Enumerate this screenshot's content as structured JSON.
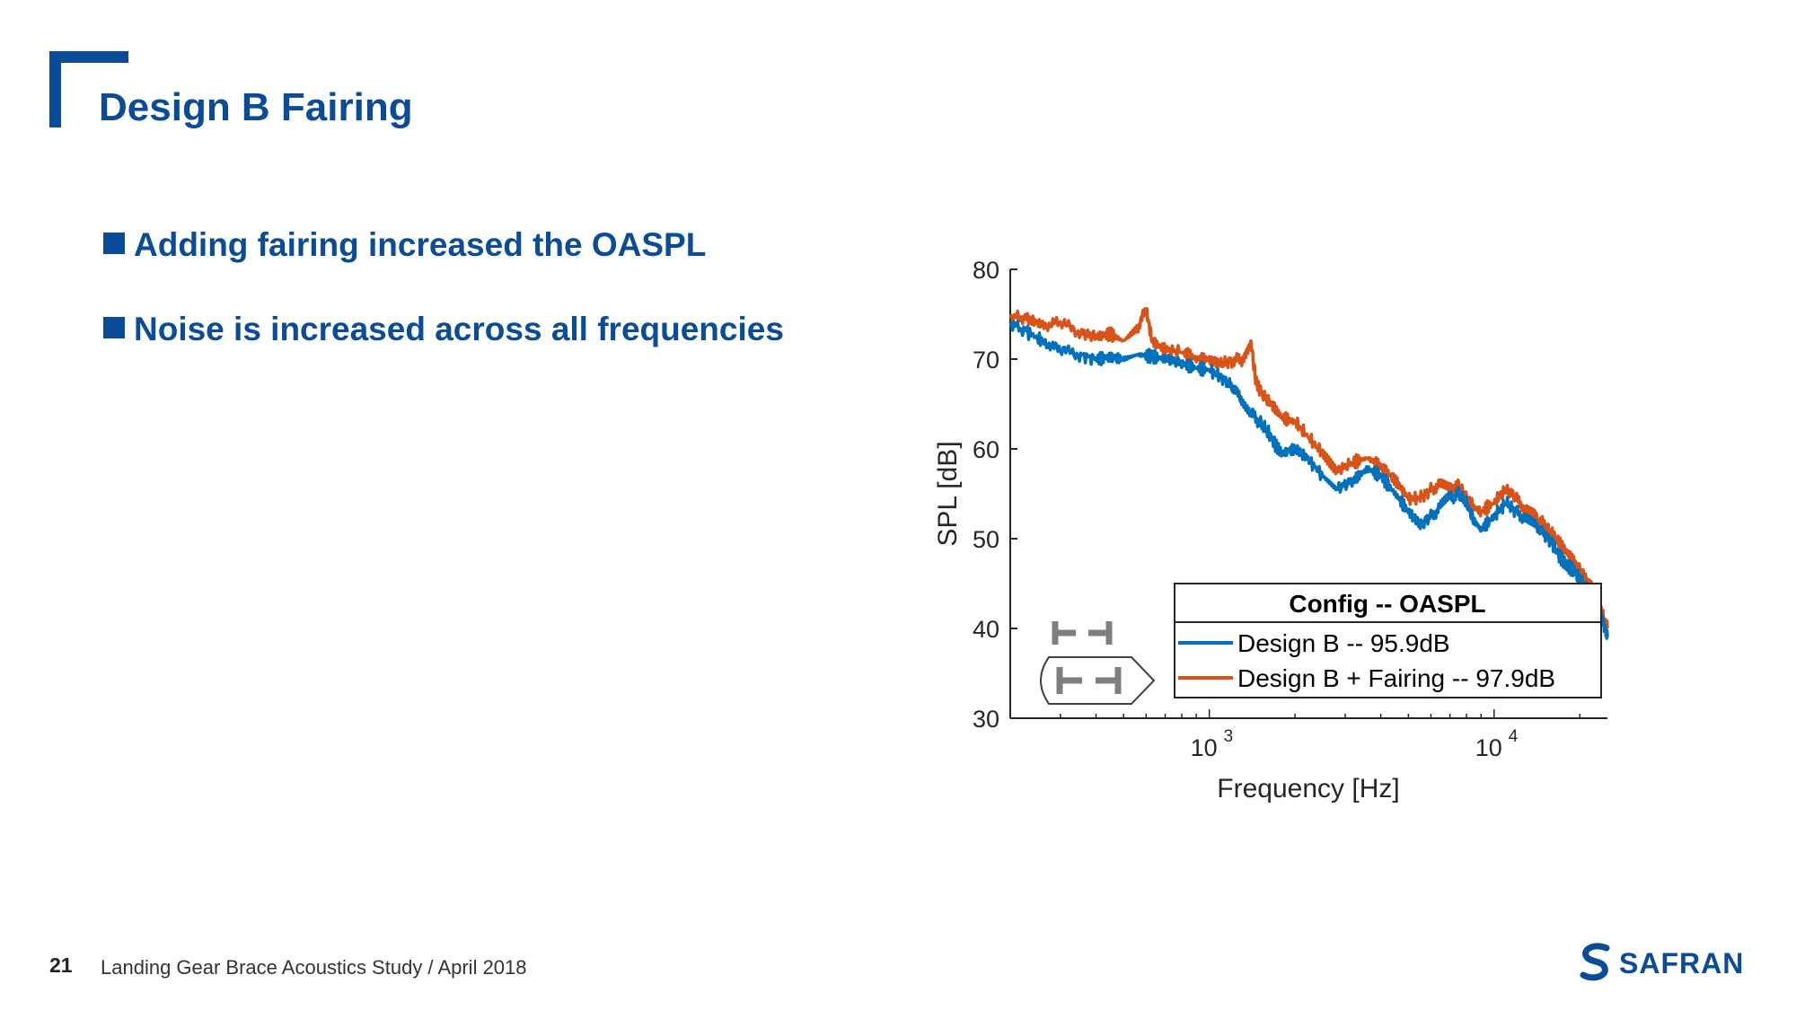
{
  "slide": {
    "title": "Design B Fairing",
    "bullets": [
      "Adding fairing increased the OASPL",
      "Noise is increased across all frequencies"
    ],
    "page_number": "21",
    "footer": "Landing Gear Brace Acoustics Study / April 2018",
    "brand": "SAFRAN",
    "brand_color": "#0a4b9a"
  },
  "chart_data": {
    "type": "line",
    "xscale": "log",
    "xlabel": "Frequency [Hz]",
    "ylabel": "SPL [dB]",
    "xlim": [
      200,
      25000
    ],
    "ylim": [
      30,
      80
    ],
    "yticks": [
      30,
      40,
      50,
      60,
      70,
      80
    ],
    "xticks": [
      {
        "value": 1000,
        "base": "10",
        "exp": "3"
      },
      {
        "value": 10000,
        "base": "10",
        "exp": "4"
      }
    ],
    "legend": {
      "title": "Config -- OASPL",
      "position": "bottom-right"
    },
    "series": [
      {
        "name": "Design B -- 95.9dB",
        "color": "#0072bd",
        "x": [
          200,
          230,
          260,
          300,
          350,
          400,
          450,
          500,
          560,
          630,
          700,
          800,
          900,
          1000,
          1100,
          1200,
          1300,
          1400,
          1500,
          1600,
          1700,
          1800,
          2000,
          2200,
          2500,
          2800,
          3200,
          3600,
          4000,
          4500,
          5000,
          5500,
          6000,
          6500,
          7000,
          7500,
          8000,
          8500,
          9000,
          10000,
          11000,
          12000,
          13000,
          14000,
          15000,
          16000,
          17000,
          18000,
          19000,
          20000,
          21000,
          22000,
          23000,
          24000,
          25000
        ],
        "y": [
          74.0,
          73.0,
          72.0,
          71.0,
          70.5,
          70.0,
          70.2,
          70.0,
          70.5,
          70.3,
          70.0,
          69.5,
          69.0,
          68.8,
          68.0,
          67.0,
          65.5,
          64.0,
          63.0,
          62.0,
          60.5,
          59.5,
          60.0,
          59.0,
          57.0,
          55.5,
          56.5,
          57.8,
          57.0,
          55.0,
          53.0,
          51.5,
          52.5,
          53.5,
          54.5,
          55.0,
          54.0,
          52.0,
          51.0,
          52.5,
          54.0,
          53.0,
          52.0,
          51.5,
          50.5,
          49.5,
          48.0,
          47.0,
          46.5,
          45.5,
          44.5,
          43.5,
          42.5,
          41.0,
          39.0
        ]
      },
      {
        "name": "Design B + Fairing -- 97.9dB",
        "color": "#d95319",
        "x": [
          200,
          230,
          260,
          300,
          350,
          400,
          450,
          500,
          560,
          600,
          630,
          700,
          800,
          900,
          1000,
          1100,
          1200,
          1300,
          1400,
          1450,
          1500,
          1600,
          1700,
          1800,
          2000,
          2200,
          2500,
          2800,
          3200,
          3600,
          4000,
          4500,
          5000,
          5500,
          6000,
          6500,
          7000,
          7500,
          8000,
          8500,
          9000,
          10000,
          11000,
          12000,
          13000,
          14000,
          15000,
          16000,
          17000,
          18000,
          19000,
          20000,
          21000,
          22000,
          23000,
          24000,
          25000
        ],
        "y": [
          74.8,
          74.5,
          73.8,
          74.0,
          73.0,
          72.5,
          72.8,
          72.0,
          73.5,
          75.5,
          72.0,
          71.0,
          70.8,
          70.0,
          70.0,
          69.5,
          69.8,
          70.0,
          72.0,
          68.0,
          66.5,
          65.5,
          64.5,
          63.5,
          63.0,
          61.5,
          59.5,
          57.5,
          58.5,
          59.0,
          58.0,
          56.5,
          54.5,
          54.5,
          55.5,
          56.0,
          55.5,
          56.0,
          54.5,
          53.5,
          53.0,
          54.0,
          55.5,
          54.5,
          53.0,
          52.5,
          51.5,
          50.5,
          49.5,
          48.5,
          47.5,
          46.5,
          45.5,
          44.5,
          43.0,
          41.5,
          40.0
        ]
      }
    ]
  }
}
